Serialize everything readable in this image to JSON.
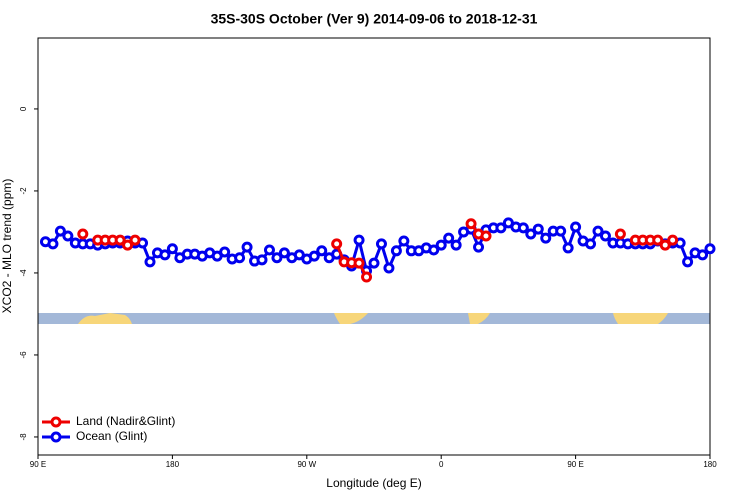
{
  "chart_data": {
    "type": "line",
    "title": "35S-30S October (Ver 9)   2014-09-06 to 2018-12-31",
    "x_label": "Longitude (deg E)",
    "y_label": "XCO2 - MLO trend (ppm)",
    "xlim": [
      90,
      540
    ],
    "ylim": [
      -8.44,
      1.73
    ],
    "xticks": [
      {
        "value": 90,
        "label": "90 E"
      },
      180,
      {
        "value": 270,
        "label": "90 W"
      },
      {
        "value": 360,
        "label": "0"
      },
      {
        "value": 450,
        "label": "90 E"
      },
      {
        "value": 540,
        "label": "180"
      }
    ],
    "yticks": [
      0,
      -2,
      -4,
      -6,
      -8
    ],
    "legend": "bottom-left",
    "x": [
      95,
      100,
      105,
      110,
      115,
      120,
      125,
      130,
      135,
      140,
      145,
      150,
      155,
      160,
      165,
      170,
      175,
      180,
      185,
      190,
      195,
      200,
      205,
      210,
      215,
      220,
      225,
      230,
      235,
      240,
      245,
      250,
      255,
      260,
      265,
      270,
      275,
      280,
      285,
      290,
      295,
      300,
      305,
      310,
      315,
      320,
      325,
      330,
      335,
      340,
      345,
      350,
      355,
      360,
      365,
      370,
      375,
      380,
      385,
      390,
      395,
      400,
      405,
      410,
      415,
      420,
      425,
      430,
      435,
      440,
      445,
      450,
      455,
      460,
      465,
      470,
      475,
      480,
      485,
      490,
      495,
      500,
      505,
      510,
      515,
      520,
      525,
      530,
      535,
      540
    ],
    "series": [
      {
        "name": "Ocean (Glint)",
        "color": "#0000ee",
        "values": [
          -3.24,
          -3.29,
          -2.98,
          -3.1,
          -3.27,
          -3.29,
          -3.29,
          -3.32,
          -3.29,
          -3.27,
          -3.27,
          -3.22,
          -3.27,
          -3.27,
          -3.73,
          -3.51,
          -3.56,
          -3.41,
          -3.63,
          -3.54,
          -3.54,
          -3.59,
          -3.51,
          -3.59,
          -3.49,
          -3.66,
          -3.63,
          -3.37,
          -3.71,
          -3.68,
          -3.44,
          -3.63,
          -3.51,
          -3.63,
          -3.56,
          -3.66,
          -3.59,
          -3.46,
          -3.63,
          -3.54,
          -3.68,
          -3.83,
          -3.2,
          -3.95,
          -3.76,
          -3.29,
          -3.88,
          -3.46,
          -3.22,
          -3.46,
          -3.46,
          -3.39,
          -3.44,
          -3.32,
          -3.15,
          -3.32,
          -3.0,
          -2.93,
          -3.37,
          -2.95,
          -2.9,
          -2.9,
          -2.78,
          -2.88,
          -2.9,
          -3.05,
          -2.93,
          -3.15,
          -2.98,
          -2.98,
          -3.39,
          -2.88,
          -3.22,
          -3.29,
          -2.98,
          -3.1,
          -3.27,
          -3.27,
          -3.29,
          -3.29,
          -3.29,
          -3.29,
          -3.22,
          -3.29,
          -3.27,
          -3.27,
          -3.73,
          -3.51,
          -3.56,
          -3.41
        ]
      },
      {
        "name": "Land (Nadir&Glint)",
        "color": "#ee0000",
        "values": [
          null,
          null,
          null,
          null,
          null,
          -3.05,
          null,
          -3.2,
          -3.2,
          -3.2,
          -3.2,
          -3.32,
          -3.2,
          null,
          null,
          null,
          null,
          null,
          null,
          null,
          null,
          null,
          null,
          null,
          null,
          null,
          null,
          null,
          null,
          null,
          null,
          null,
          null,
          null,
          null,
          null,
          null,
          null,
          null,
          -3.29,
          -3.73,
          -3.75,
          -3.76,
          -4.1,
          null,
          null,
          null,
          null,
          null,
          null,
          null,
          null,
          null,
          null,
          null,
          null,
          null,
          -2.8,
          -3.05,
          -3.1,
          null,
          null,
          null,
          null,
          null,
          null,
          null,
          null,
          null,
          null,
          null,
          null,
          null,
          null,
          null,
          null,
          null,
          -3.05,
          null,
          -3.2,
          -3.2,
          -3.2,
          -3.2,
          -3.32,
          -3.2,
          null,
          null,
          null,
          null,
          null
        ]
      }
    ]
  }
}
